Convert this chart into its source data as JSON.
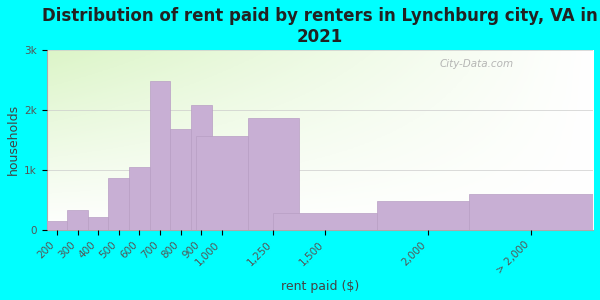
{
  "title": "Distribution of rent paid by renters in Lynchburg city, VA in\n2021",
  "xlabel": "rent paid ($)",
  "ylabel": "households",
  "background_color": "#00FFFF",
  "bar_color": "#c8afd4",
  "bar_edge_color": "#b89ec4",
  "categories": [
    "200",
    "300",
    "400",
    "500",
    "600",
    "700",
    "800",
    "900",
    "1,000",
    "1,250",
    "1,500",
    "2,000",
    "> 2,000"
  ],
  "x_numeric": [
    200,
    300,
    400,
    500,
    600,
    700,
    800,
    900,
    1000,
    1250,
    1500,
    2000,
    2500
  ],
  "x_widths": [
    100,
    100,
    100,
    100,
    100,
    100,
    100,
    100,
    250,
    250,
    500,
    500,
    600
  ],
  "values": [
    150,
    330,
    220,
    870,
    1050,
    2480,
    1680,
    2080,
    1560,
    1870,
    280,
    480,
    600
  ],
  "ylim": [
    0,
    3000
  ],
  "yticks": [
    0,
    1000,
    2000,
    3000
  ],
  "ytick_labels": [
    "0",
    "1k",
    "2k",
    "3k"
  ],
  "watermark": "City-Data.com",
  "title_fontsize": 12,
  "axis_label_fontsize": 9,
  "tick_fontsize": 7.5
}
